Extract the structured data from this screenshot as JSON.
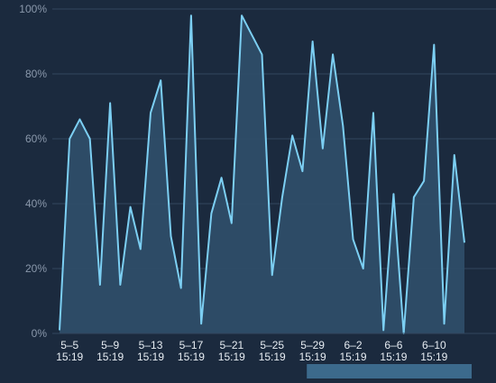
{
  "colors": {
    "background": "#1b2a3e",
    "gridline": "#33465e",
    "line": "#7ccff3",
    "area_fill": "#2e4d68",
    "zoom_bar": "#3c6a8c"
  },
  "chart_data": {
    "type": "area",
    "title": "",
    "xlabel": "",
    "ylabel": "",
    "ylim": [
      0,
      100
    ],
    "y_ticks": [
      "0%",
      "20%",
      "40%",
      "60%",
      "80%",
      "100%"
    ],
    "grid": true,
    "x_ticks": [
      {
        "date": "5–5",
        "time": "15:19",
        "index": 1
      },
      {
        "date": "5–9",
        "time": "15:19",
        "index": 5
      },
      {
        "date": "5–13",
        "time": "15:19",
        "index": 9
      },
      {
        "date": "5–17",
        "time": "15:19",
        "index": 13
      },
      {
        "date": "5–21",
        "time": "15:19",
        "index": 17
      },
      {
        "date": "5–25",
        "time": "15:19",
        "index": 21
      },
      {
        "date": "5–29",
        "time": "15:19",
        "index": 25
      },
      {
        "date": "6–2",
        "time": "15:19",
        "index": 29
      },
      {
        "date": "6–6",
        "time": "15:19",
        "index": 33
      },
      {
        "date": "6–10",
        "time": "15:19",
        "index": 37
      }
    ],
    "series": [
      {
        "values": [
          1,
          60,
          66,
          60,
          15,
          71,
          15,
          39,
          26,
          68,
          78,
          30,
          14,
          98,
          3,
          37,
          48,
          34,
          98,
          92,
          86,
          18,
          42,
          61,
          50,
          90,
          57,
          86,
          64,
          29,
          20,
          68,
          1,
          43,
          0,
          42,
          47,
          89,
          3,
          55,
          28
        ]
      }
    ]
  },
  "zoom_slider": {
    "window_start": 0.6,
    "window_end": 1.0
  }
}
